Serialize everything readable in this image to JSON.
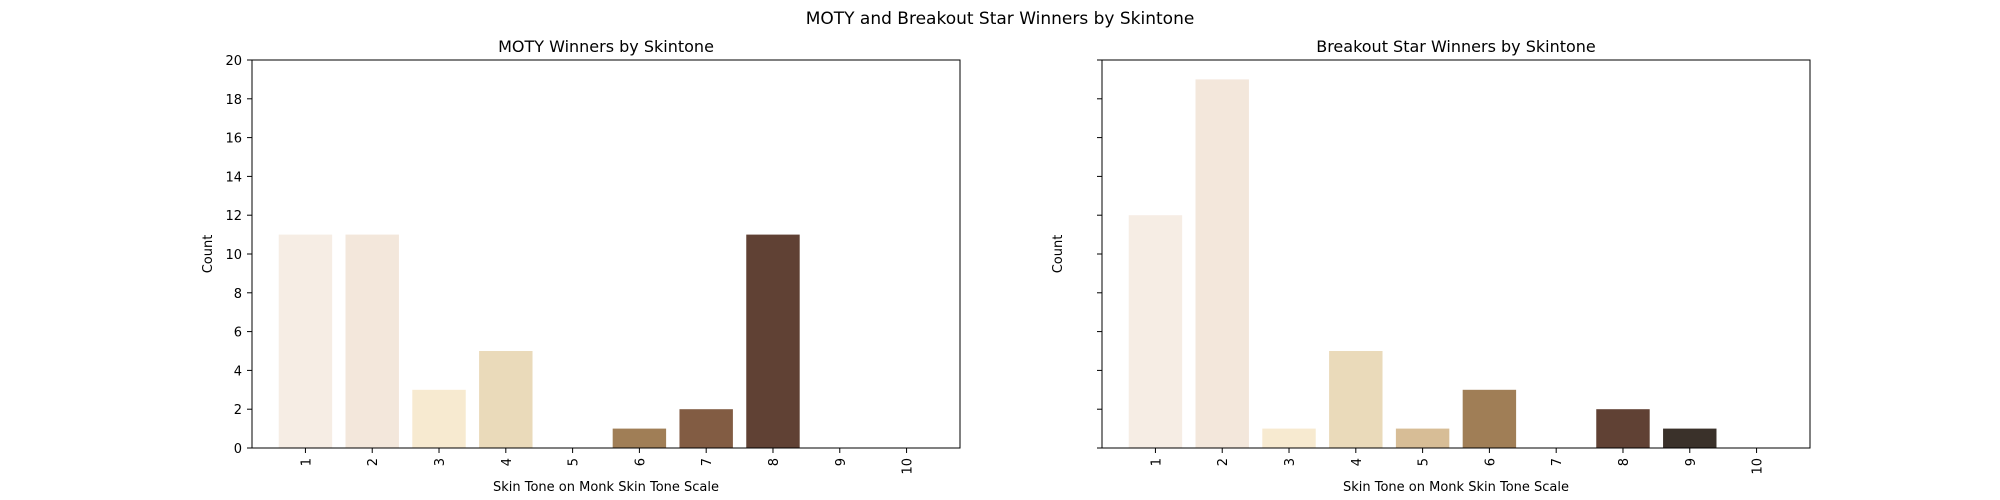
{
  "figure": {
    "title": "MOTY and Breakout Star Winners by Skintone"
  },
  "chart_data": [
    {
      "type": "bar",
      "title": "MOTY Winners by Skintone",
      "xlabel": "Skin Tone on Monk Skin Tone Scale",
      "ylabel": "Count",
      "categories": [
        "1",
        "2",
        "3",
        "4",
        "5",
        "6",
        "7",
        "8",
        "9",
        "10"
      ],
      "values": [
        11,
        11,
        3,
        5,
        0,
        1,
        2,
        11,
        0,
        0
      ],
      "colors": [
        "#F6EDE4",
        "#F3E7DB",
        "#F7EAD0",
        "#EADABA",
        "#D7BD96",
        "#A07E56",
        "#825C43",
        "#604134",
        "#3A312A",
        "#292420"
      ],
      "ylim": [
        0,
        20
      ],
      "yticks": [
        0,
        2,
        4,
        6,
        8,
        10,
        12,
        14,
        16,
        18,
        20
      ],
      "ytick_labels_shown": true,
      "grid": false,
      "legend": "none"
    },
    {
      "type": "bar",
      "title": "Breakout Star Winners by Skintone",
      "xlabel": "Skin Tone on Monk Skin Tone Scale",
      "ylabel": "Count",
      "categories": [
        "1",
        "2",
        "3",
        "4",
        "5",
        "6",
        "7",
        "8",
        "9",
        "10"
      ],
      "values": [
        12,
        19,
        1,
        5,
        1,
        3,
        0,
        2,
        1,
        0
      ],
      "colors": [
        "#F6EDE4",
        "#F3E7DB",
        "#F7EAD0",
        "#EADABA",
        "#D7BD96",
        "#A07E56",
        "#825C43",
        "#604134",
        "#3A312A",
        "#292420"
      ],
      "ylim": [
        0,
        20
      ],
      "yticks": [
        0,
        2,
        4,
        6,
        8,
        10,
        12,
        14,
        16,
        18,
        20
      ],
      "ytick_labels_shown": false,
      "grid": false,
      "legend": "none"
    }
  ]
}
